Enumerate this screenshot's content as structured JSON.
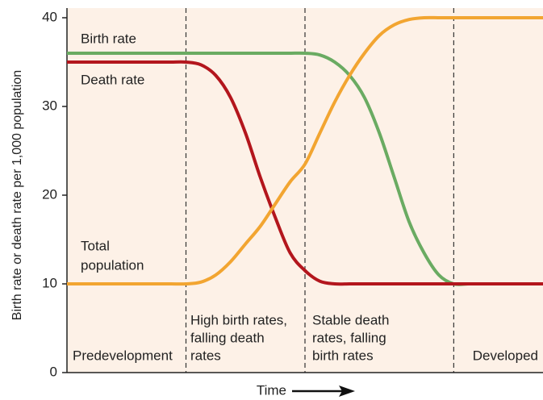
{
  "chart_data": {
    "type": "line",
    "ylabel": "Birth rate or death rate per 1,000 population",
    "xlabel": "Time",
    "categories": [
      null,
      null,
      null,
      null,
      null,
      null,
      null,
      null,
      null,
      null,
      null,
      null,
      null,
      null,
      null,
      null,
      null,
      null,
      null,
      null,
      null,
      null,
      null,
      null,
      null,
      null,
      null,
      null,
      null,
      null,
      null,
      null,
      null
    ],
    "series": [
      {
        "name": "Birth rate",
        "color": "#6aab62",
        "values": [
          36,
          36,
          36,
          36,
          36,
          36,
          36,
          36,
          36,
          36,
          36,
          36,
          36,
          36,
          36,
          36,
          36,
          35.8,
          35,
          33.5,
          31,
          27,
          22,
          17,
          13.5,
          11,
          10,
          10,
          10,
          10,
          10,
          10,
          10
        ]
      },
      {
        "name": "Death rate",
        "color": "#b3161d",
        "values": [
          35,
          35,
          35,
          35,
          35,
          35,
          35,
          35,
          35,
          34.7,
          33.5,
          31,
          27,
          22,
          17.5,
          13.5,
          11.5,
          10.3,
          10,
          10,
          10,
          10,
          10,
          10,
          10,
          10,
          10,
          10,
          10,
          10,
          10,
          10,
          10
        ]
      },
      {
        "name": [
          "Total",
          "population"
        ],
        "color": "#f2a531",
        "values": [
          10,
          10,
          10,
          10,
          10,
          10,
          10,
          10,
          10,
          10.2,
          11,
          12.5,
          14.5,
          16.5,
          19,
          21.5,
          23.5,
          27,
          30.5,
          33.5,
          36,
          38,
          39.2,
          39.8,
          40,
          40,
          40,
          40,
          40,
          40,
          40,
          40,
          40
        ]
      }
    ],
    "annotations": [
      [
        "Predevelopment"
      ],
      [
        "High birth rates,",
        "falling death",
        "rates"
      ],
      [
        "Stable death",
        "rates, falling",
        "birth rates"
      ],
      [
        "Developed"
      ]
    ],
    "ylim": [
      0,
      40
    ],
    "yticks": [
      0,
      10,
      20,
      30,
      40
    ]
  }
}
